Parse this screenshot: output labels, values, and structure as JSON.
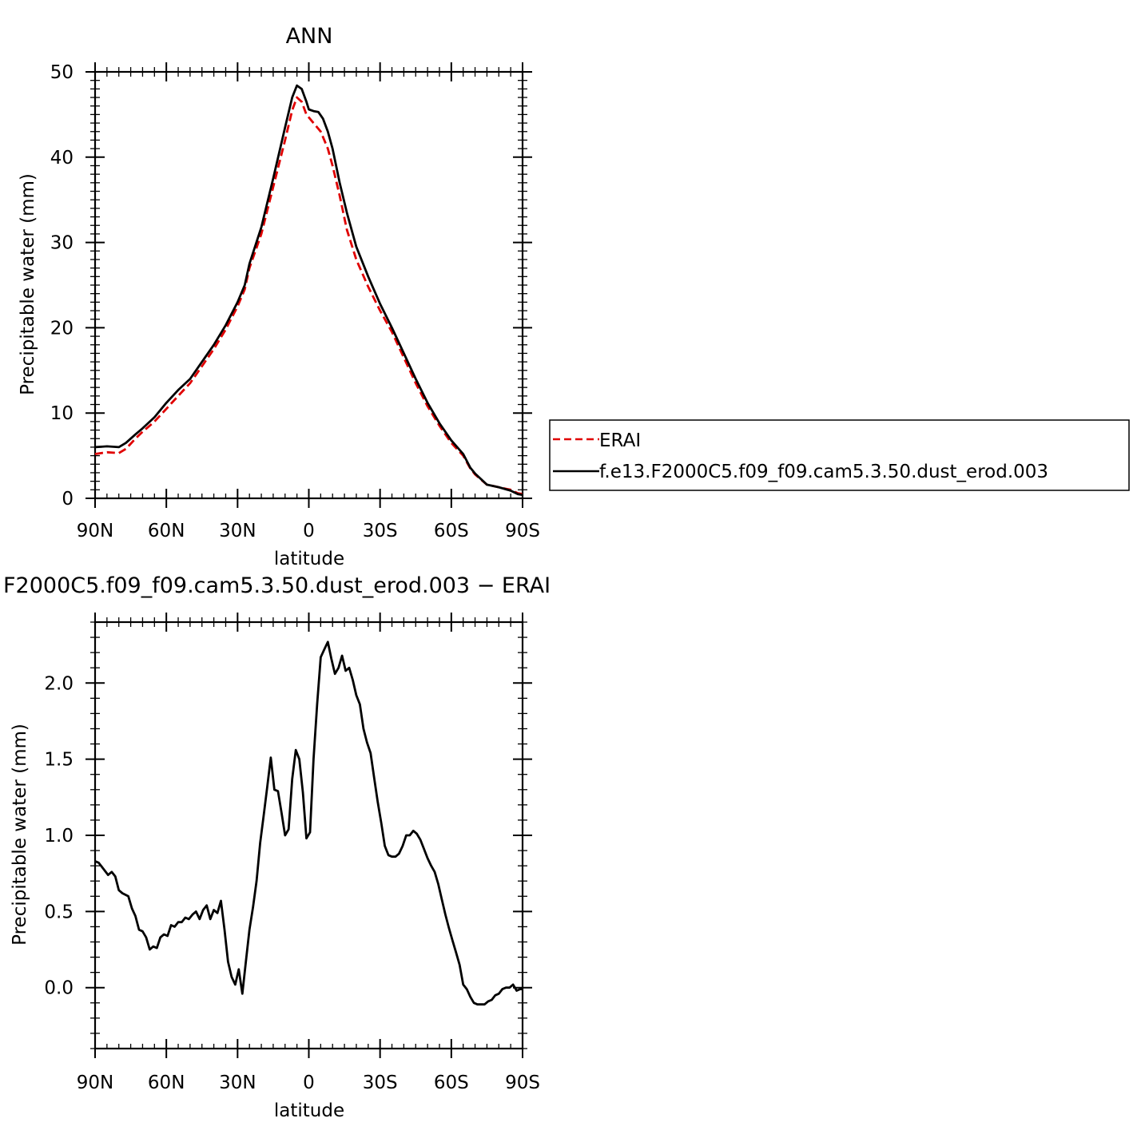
{
  "chart_data": [
    {
      "type": "line",
      "title": "ANN",
      "xlabel": "latitude",
      "ylabel": "Precipitable water (mm)",
      "xlim": [
        -90,
        90
      ],
      "ylim": [
        0,
        50
      ],
      "x_direction": "north-to-south",
      "xticks": [
        {
          "value": -90,
          "label": "90N"
        },
        {
          "value": -60,
          "label": "60N"
        },
        {
          "value": -30,
          "label": "30N"
        },
        {
          "value": 0,
          "label": "0"
        },
        {
          "value": 30,
          "label": "30S"
        },
        {
          "value": 60,
          "label": "60S"
        },
        {
          "value": 90,
          "label": "90S"
        }
      ],
      "yticks": [
        {
          "value": 0,
          "label": "0"
        },
        {
          "value": 10,
          "label": "10"
        },
        {
          "value": 20,
          "label": "20"
        },
        {
          "value": 30,
          "label": "30"
        },
        {
          "value": 40,
          "label": "40"
        },
        {
          "value": 50,
          "label": "50"
        }
      ],
      "grid": false,
      "legend_position": "right",
      "series": [
        {
          "name": "ERAI",
          "color": "#e00000",
          "dash": "dashed",
          "points": [
            [
              -90,
              5.2
            ],
            [
              -85,
              5.4
            ],
            [
              -80,
              5.3
            ],
            [
              -77,
              5.8
            ],
            [
              -73,
              7.0
            ],
            [
              -70,
              7.8
            ],
            [
              -65,
              9.0
            ],
            [
              -60,
              10.5
            ],
            [
              -55,
              12.0
            ],
            [
              -50,
              13.5
            ],
            [
              -45,
              15.5
            ],
            [
              -40,
              17.5
            ],
            [
              -35,
              19.8
            ],
            [
              -30,
              22.5
            ],
            [
              -27,
              24.5
            ],
            [
              -25,
              27.0
            ],
            [
              -20,
              31.0
            ],
            [
              -15,
              36.5
            ],
            [
              -10,
              42.0
            ],
            [
              -7,
              45.5
            ],
            [
              -5,
              47.0
            ],
            [
              -3,
              46.5
            ],
            [
              -1,
              45.0
            ],
            [
              2,
              44.0
            ],
            [
              5,
              43.0
            ],
            [
              8,
              41.0
            ],
            [
              10,
              39.0
            ],
            [
              13,
              35.5
            ],
            [
              16,
              31.5
            ],
            [
              20,
              28.0
            ],
            [
              25,
              24.8
            ],
            [
              30,
              22.0
            ],
            [
              35,
              19.5
            ],
            [
              40,
              16.5
            ],
            [
              45,
              13.5
            ],
            [
              50,
              10.8
            ],
            [
              55,
              8.5
            ],
            [
              60,
              6.5
            ],
            [
              65,
              5.0
            ],
            [
              68,
              3.5
            ],
            [
              70,
              2.8
            ],
            [
              75,
              1.6
            ],
            [
              80,
              1.3
            ],
            [
              85,
              1.0
            ],
            [
              88,
              0.6
            ],
            [
              90,
              0.5
            ]
          ]
        },
        {
          "name": "f.e13.F2000C5.f09_f09.cam5.3.50.dust_erod.003",
          "color": "#000000",
          "dash": "solid",
          "points": [
            [
              -90,
              6.0
            ],
            [
              -85,
              6.1
            ],
            [
              -80,
              6.0
            ],
            [
              -77,
              6.5
            ],
            [
              -73,
              7.5
            ],
            [
              -70,
              8.2
            ],
            [
              -65,
              9.5
            ],
            [
              -60,
              11.2
            ],
            [
              -55,
              12.7
            ],
            [
              -50,
              14.0
            ],
            [
              -45,
              16.0
            ],
            [
              -40,
              18.0
            ],
            [
              -35,
              20.3
            ],
            [
              -30,
              23.0
            ],
            [
              -27,
              25.0
            ],
            [
              -25,
              27.5
            ],
            [
              -20,
              31.8
            ],
            [
              -15,
              37.5
            ],
            [
              -10,
              43.5
            ],
            [
              -7,
              47.0
            ],
            [
              -5,
              48.4
            ],
            [
              -3,
              48.0
            ],
            [
              -1,
              46.5
            ],
            [
              0,
              45.6
            ],
            [
              2,
              45.4
            ],
            [
              4,
              45.3
            ],
            [
              6,
              44.5
            ],
            [
              8,
              43.0
            ],
            [
              10,
              41.0
            ],
            [
              13,
              37.0
            ],
            [
              16,
              33.5
            ],
            [
              20,
              29.5
            ],
            [
              25,
              26.0
            ],
            [
              30,
              22.8
            ],
            [
              35,
              20.0
            ],
            [
              40,
              17.0
            ],
            [
              45,
              14.0
            ],
            [
              50,
              11.2
            ],
            [
              55,
              8.8
            ],
            [
              60,
              6.8
            ],
            [
              65,
              5.2
            ],
            [
              68,
              3.6
            ],
            [
              70,
              2.9
            ],
            [
              75,
              1.6
            ],
            [
              80,
              1.3
            ],
            [
              85,
              0.9
            ],
            [
              88,
              0.5
            ],
            [
              90,
              0.4
            ]
          ]
        }
      ]
    },
    {
      "type": "line",
      "title": "F2000C5.f09_f09.cam5.3.50.dust_erod.003 − ERAI",
      "xlabel": "latitude",
      "ylabel": "Precipitable water (mm)",
      "xlim": [
        -90,
        90
      ],
      "ylim": [
        -0.4,
        2.4
      ],
      "x_direction": "north-to-south",
      "xticks": [
        {
          "value": -90,
          "label": "90N"
        },
        {
          "value": -60,
          "label": "60N"
        },
        {
          "value": -30,
          "label": "30N"
        },
        {
          "value": 0,
          "label": "0"
        },
        {
          "value": 30,
          "label": "30S"
        },
        {
          "value": 60,
          "label": "60S"
        },
        {
          "value": 90,
          "label": "90S"
        }
      ],
      "yticks": [
        {
          "value": 0.0,
          "label": "0.0"
        },
        {
          "value": 0.5,
          "label": "0.5"
        },
        {
          "value": 1.0,
          "label": "1.0"
        },
        {
          "value": 1.5,
          "label": "1.5"
        },
        {
          "value": 2.0,
          "label": "2.0"
        }
      ],
      "grid": false,
      "series": [
        {
          "color": "#000000",
          "dash": "solid",
          "points": [
            [
              -90,
              0.83
            ],
            [
              -88.5,
              0.82
            ],
            [
              -87,
              0.79
            ],
            [
              -84.5,
              0.74
            ],
            [
              -83,
              0.76
            ],
            [
              -81.5,
              0.73
            ],
            [
              -80,
              0.64
            ],
            [
              -78.5,
              0.62
            ],
            [
              -76,
              0.6
            ],
            [
              -74.5,
              0.52
            ],
            [
              -73,
              0.47
            ],
            [
              -71.5,
              0.38
            ],
            [
              -70,
              0.37
            ],
            [
              -68.5,
              0.33
            ],
            [
              -67,
              0.25
            ],
            [
              -65.5,
              0.27
            ],
            [
              -64,
              0.26
            ],
            [
              -62.5,
              0.33
            ],
            [
              -61,
              0.35
            ],
            [
              -59.5,
              0.34
            ],
            [
              -58,
              0.41
            ],
            [
              -56.5,
              0.4
            ],
            [
              -55,
              0.43
            ],
            [
              -53.5,
              0.43
            ],
            [
              -52,
              0.46
            ],
            [
              -50.5,
              0.45
            ],
            [
              -49,
              0.48
            ],
            [
              -47.5,
              0.5
            ],
            [
              -46,
              0.45
            ],
            [
              -44.5,
              0.51
            ],
            [
              -43,
              0.54
            ],
            [
              -41.5,
              0.45
            ],
            [
              -40,
              0.51
            ],
            [
              -38.5,
              0.49
            ],
            [
              -37,
              0.57
            ],
            [
              -35.5,
              0.38
            ],
            [
              -34,
              0.17
            ],
            [
              -32.5,
              0.07
            ],
            [
              -31,
              0.02
            ],
            [
              -29.5,
              0.12
            ],
            [
              -28,
              -0.04
            ],
            [
              -26.5,
              0.17
            ],
            [
              -25,
              0.38
            ],
            [
              -23.5,
              0.53
            ],
            [
              -22,
              0.7
            ],
            [
              -20.5,
              0.95
            ],
            [
              -19,
              1.13
            ],
            [
              -17.5,
              1.32
            ],
            [
              -16,
              1.51
            ],
            [
              -14.5,
              1.3
            ],
            [
              -13,
              1.29
            ],
            [
              -11.5,
              1.15
            ],
            [
              -10,
              1.0
            ],
            [
              -8.5,
              1.04
            ],
            [
              -7,
              1.37
            ],
            [
              -5.5,
              1.56
            ],
            [
              -4,
              1.5
            ],
            [
              -2.5,
              1.28
            ],
            [
              -1,
              0.98
            ],
            [
              0.5,
              1.02
            ],
            [
              2,
              1.5
            ],
            [
              3.5,
              1.86
            ],
            [
              5,
              2.17
            ],
            [
              6.5,
              2.22
            ],
            [
              8,
              2.27
            ],
            [
              9.5,
              2.16
            ],
            [
              11,
              2.06
            ],
            [
              12.5,
              2.1
            ],
            [
              14,
              2.18
            ],
            [
              15.5,
              2.08
            ],
            [
              17,
              2.1
            ],
            [
              18.5,
              2.02
            ],
            [
              20,
              1.92
            ],
            [
              21.5,
              1.86
            ],
            [
              23,
              1.7
            ],
            [
              24.5,
              1.61
            ],
            [
              26,
              1.54
            ],
            [
              27.5,
              1.38
            ],
            [
              29,
              1.22
            ],
            [
              30.5,
              1.08
            ],
            [
              32,
              0.93
            ],
            [
              33.5,
              0.87
            ],
            [
              35,
              0.86
            ],
            [
              36.5,
              0.86
            ],
            [
              38,
              0.88
            ],
            [
              39.5,
              0.93
            ],
            [
              41,
              1.0
            ],
            [
              42.5,
              1.0
            ],
            [
              44,
              1.03
            ],
            [
              45.5,
              1.01
            ],
            [
              47,
              0.97
            ],
            [
              48.5,
              0.91
            ],
            [
              50,
              0.85
            ],
            [
              51.5,
              0.8
            ],
            [
              53,
              0.76
            ],
            [
              54.5,
              0.68
            ],
            [
              56,
              0.58
            ],
            [
              57.5,
              0.48
            ],
            [
              59,
              0.39
            ],
            [
              60.5,
              0.31
            ],
            [
              62,
              0.23
            ],
            [
              63.5,
              0.15
            ],
            [
              65,
              0.02
            ],
            [
              66.5,
              -0.01
            ],
            [
              68,
              -0.06
            ],
            [
              69.5,
              -0.1
            ],
            [
              71,
              -0.11
            ],
            [
              72.5,
              -0.11
            ],
            [
              74,
              -0.11
            ],
            [
              75.5,
              -0.09
            ],
            [
              77,
              -0.08
            ],
            [
              78.5,
              -0.05
            ],
            [
              80,
              -0.04
            ],
            [
              81.5,
              -0.01
            ],
            [
              83,
              0.0
            ],
            [
              84.5,
              0.0
            ],
            [
              86,
              0.02
            ],
            [
              87.5,
              -0.02
            ],
            [
              89,
              -0.01
            ],
            [
              90,
              -0.01
            ]
          ]
        }
      ]
    }
  ]
}
